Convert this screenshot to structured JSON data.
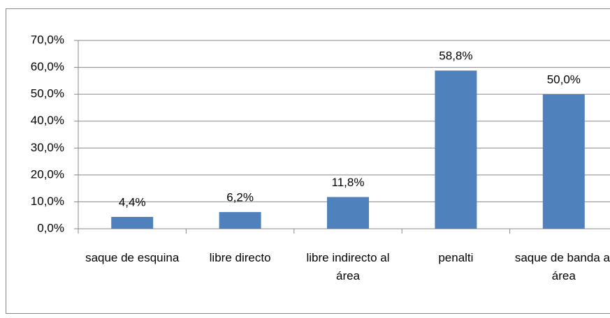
{
  "chart_data": {
    "type": "bar",
    "categories": [
      "saque de esquina",
      "libre directo",
      "libre indirecto al área",
      "penalti",
      "saque de banda al área"
    ],
    "values": [
      4.4,
      6.2,
      11.8,
      58.8,
      50.0
    ],
    "value_labels": [
      "4,4%",
      "6,2%",
      "11,8%",
      "58,8%",
      "50,0%"
    ],
    "color": "#4f81bd",
    "ylim": [
      0,
      70
    ],
    "yticks": [
      {
        "value": 0,
        "label": "0,0%"
      },
      {
        "value": 10,
        "label": "10,0%"
      },
      {
        "value": 20,
        "label": "20,0%"
      },
      {
        "value": 30,
        "label": "30,0%"
      },
      {
        "value": 40,
        "label": "40,0%"
      },
      {
        "value": 50,
        "label": "50,0%"
      },
      {
        "value": 60,
        "label": "60,0%"
      },
      {
        "value": 70,
        "label": "70,0%"
      }
    ],
    "grid": true
  }
}
